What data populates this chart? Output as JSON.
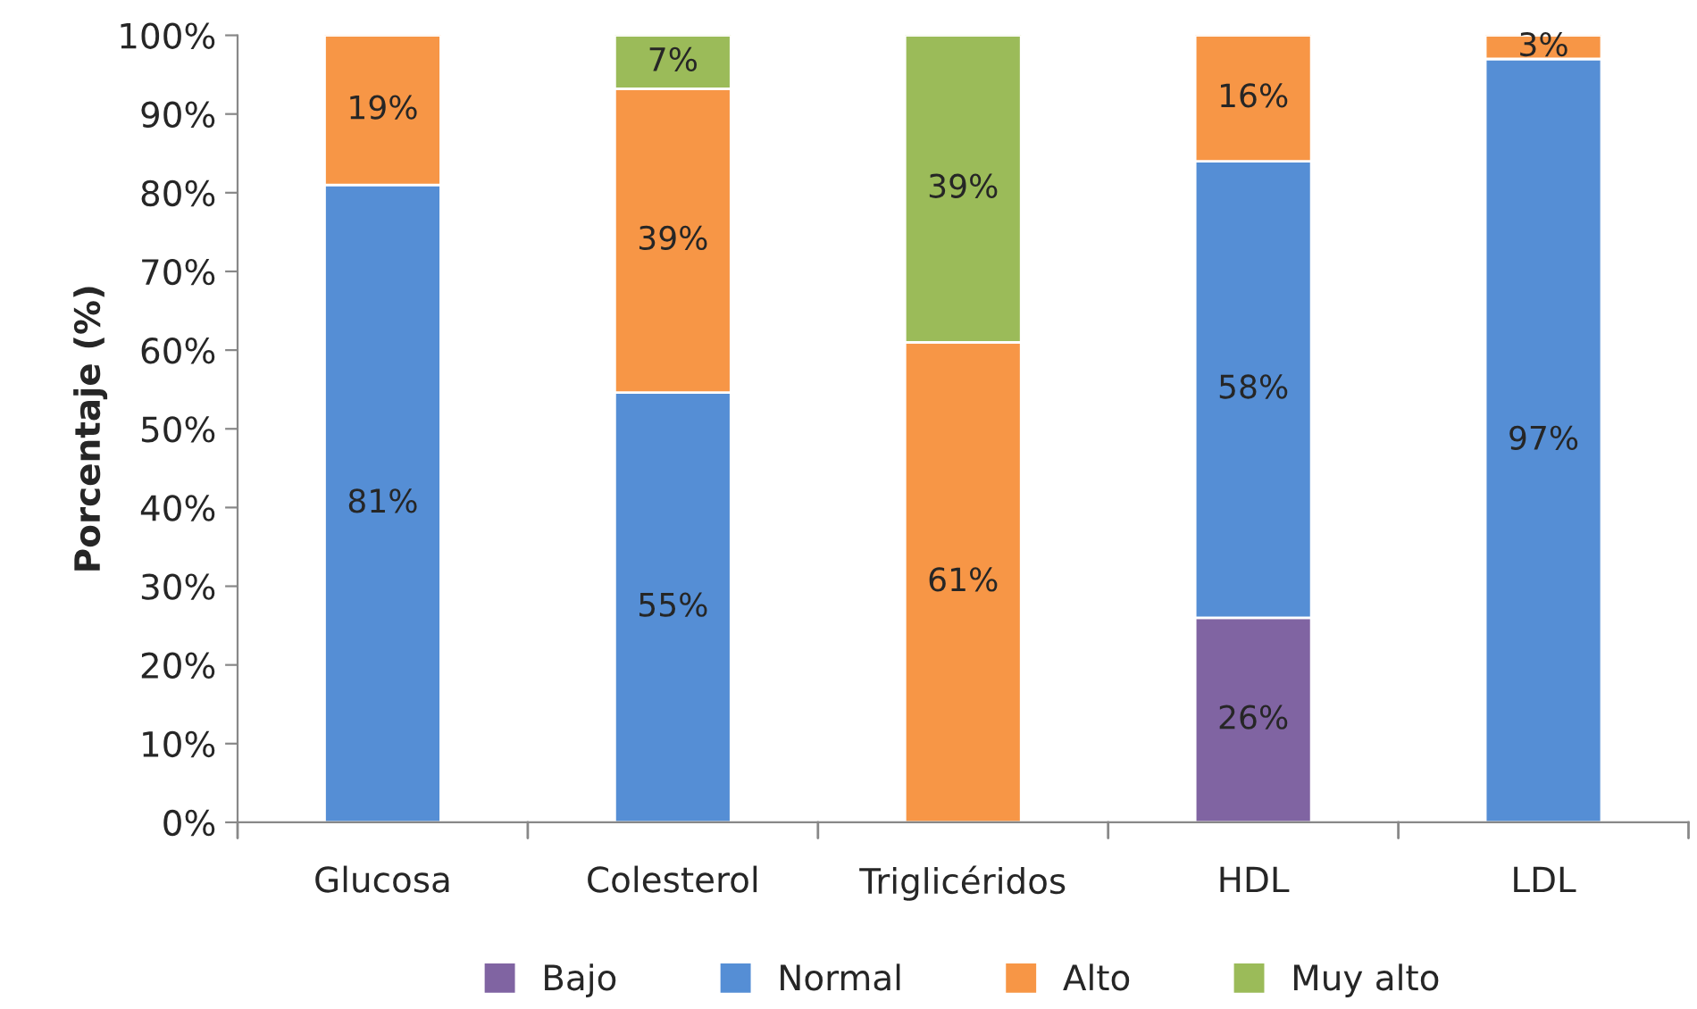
{
  "chart_data": {
    "type": "bar",
    "stacked": true,
    "ylabel": "Porcentaje (%)",
    "categories": [
      "Glucosa",
      "Colesterol",
      "Triglicéridos",
      "HDL",
      "LDL"
    ],
    "series": [
      {
        "name": "Bajo",
        "color": "#8064a2",
        "values": [
          null,
          null,
          null,
          26,
          null
        ],
        "value_labels": [
          null,
          null,
          null,
          "26%",
          null
        ]
      },
      {
        "name": "Normal",
        "color": "#558ed5",
        "values": [
          81,
          54.6,
          null,
          58,
          97
        ],
        "value_labels": [
          "81%",
          "55%",
          null,
          "58%",
          "97%"
        ]
      },
      {
        "name": "Alto",
        "color": "#f79646",
        "values": [
          19,
          38.6,
          61,
          16,
          3
        ],
        "value_labels": [
          "19%",
          "39%",
          "61%",
          "16%",
          "3%"
        ]
      },
      {
        "name": "Muy alto",
        "color": "#9bbb59",
        "values": [
          null,
          6.8,
          39,
          null,
          null
        ],
        "value_labels": [
          null,
          "7%",
          "39%",
          null,
          null
        ]
      }
    ],
    "ylim": [
      0,
      100
    ],
    "yticks": [
      {
        "value": 0,
        "label": "0%"
      },
      {
        "value": 10,
        "label": "10%"
      },
      {
        "value": 20,
        "label": "20%"
      },
      {
        "value": 30,
        "label": "30%"
      },
      {
        "value": 40,
        "label": "40%"
      },
      {
        "value": 50,
        "label": "50%"
      },
      {
        "value": 60,
        "label": "60%"
      },
      {
        "value": 70,
        "label": "70%"
      },
      {
        "value": 80,
        "label": "80%"
      },
      {
        "value": 90,
        "label": "90%"
      },
      {
        "value": 100,
        "label": "100%"
      }
    ],
    "grid": false,
    "legend": "bottom"
  }
}
